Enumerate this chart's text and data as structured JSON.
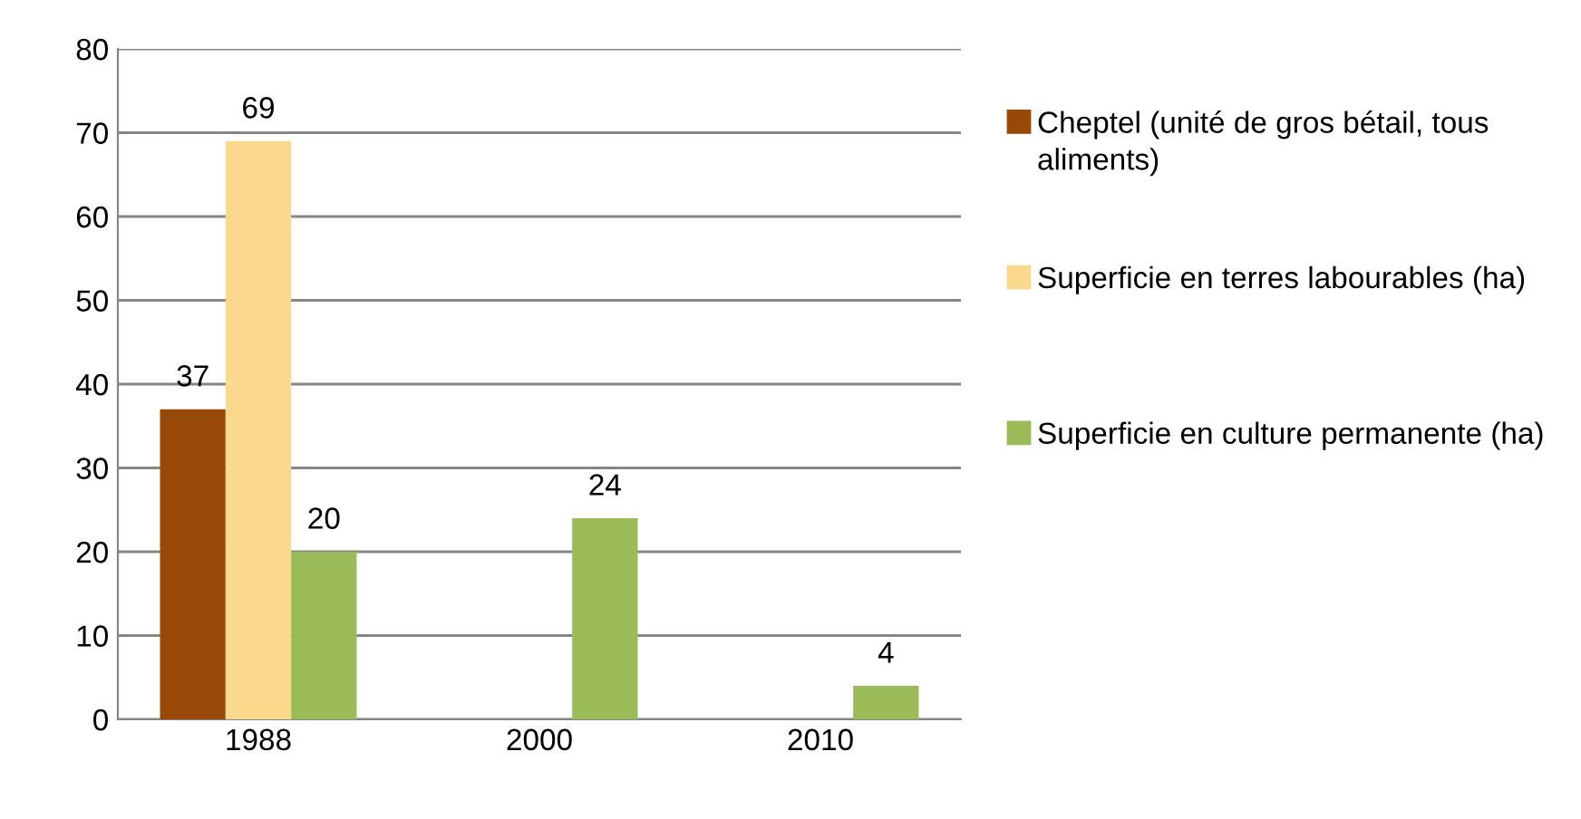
{
  "chart_data": {
    "type": "bar",
    "categories": [
      "1988",
      "2000",
      "2010"
    ],
    "series": [
      {
        "name": "Cheptel (unité de gros bétail, tous aliments)",
        "color": "#984807",
        "values": [
          37,
          null,
          null
        ]
      },
      {
        "name": "Superficie en terres labourables (ha)",
        "color": "#fad98f",
        "values": [
          69,
          null,
          null
        ]
      },
      {
        "name": "Superficie en culture permanente (ha)",
        "color": "#9bbb59",
        "values": [
          20,
          24,
          4
        ]
      }
    ],
    "ylim": [
      0,
      80
    ],
    "yticks": [
      0,
      10,
      20,
      30,
      40,
      50,
      60,
      70,
      80
    ],
    "grid": "y",
    "legend": "right",
    "data_labels": true
  }
}
